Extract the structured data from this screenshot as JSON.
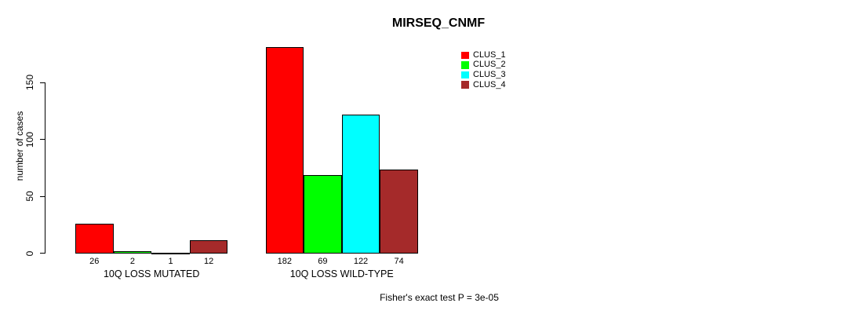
{
  "title": "MIRSEQ_CNMF",
  "chart_data": {
    "type": "bar",
    "title": "MIRSEQ_CNMF",
    "xlabel": "",
    "ylabel": "number of cases",
    "ylim": [
      0,
      150
    ],
    "yticks": [
      0,
      50,
      100,
      150
    ],
    "grid": false,
    "legend_position": "top-right",
    "categories": [
      "10Q LOSS MUTATED",
      "10Q LOSS WILD-TYPE"
    ],
    "series": [
      {
        "name": "CLUS_1",
        "color": "#FF0000",
        "values": [
          26,
          182
        ]
      },
      {
        "name": "CLUS_2",
        "color": "#00FF00",
        "values": [
          2,
          69
        ]
      },
      {
        "name": "CLUS_3",
        "color": "#00FFFF",
        "values": [
          1,
          122
        ]
      },
      {
        "name": "CLUS_4",
        "color": "#A52A2A",
        "values": [
          12,
          74
        ]
      }
    ],
    "bar_value_labels": [
      [
        "26",
        "2",
        "1",
        "12"
      ],
      [
        "182",
        "69",
        "122",
        "74"
      ]
    ],
    "annotation": "Fisher's exact test P = 3e-05"
  },
  "colors": {
    "background": "#FFFFFF",
    "axis": "#000000",
    "bar_border": "#000000",
    "text": "#000000"
  }
}
